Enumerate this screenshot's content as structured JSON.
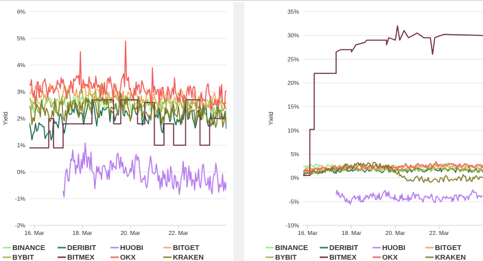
{
  "chart_data": [
    {
      "type": "line",
      "ylabel": "Yield",
      "ylim": [
        -2,
        6
      ],
      "yticks": [
        -2,
        -1,
        0,
        1,
        2,
        3,
        4,
        5,
        6
      ],
      "ytick_labels": [
        "-2%",
        "-1%",
        "0%",
        "1%",
        "2%",
        "3%",
        "4%",
        "5%",
        "6%"
      ],
      "xlim": [
        15.8,
        24.0
      ],
      "xticks": [
        16,
        18,
        20,
        22
      ],
      "xtick_labels": [
        "16. Mar",
        "18. Mar",
        "20. Mar",
        "22. Mar"
      ],
      "grid": true,
      "legend_position": "bottom",
      "series": [
        {
          "name": "BINANCE",
          "color": "#90ed7d",
          "start": 15.8,
          "end": 24.0,
          "base": 2.6,
          "amp": 0.25,
          "noise": 0.18,
          "step": 0.06,
          "pts": [
            [
              15.8,
              2.6
            ],
            [
              18.0,
              2.7
            ],
            [
              19.5,
              2.5
            ],
            [
              20.5,
              2.6
            ],
            [
              22.5,
              2.5
            ],
            [
              24.0,
              2.4
            ]
          ]
        },
        {
          "name": "DERIBIT",
          "color": "#1f6e4f",
          "start": 15.8,
          "end": 24.0,
          "base": 2.0,
          "amp": 0.35,
          "noise": 0.25,
          "step": 0.05,
          "pts": [
            [
              15.8,
              1.7
            ],
            [
              16.5,
              1.6
            ],
            [
              17.5,
              2.1
            ],
            [
              18.5,
              2.3
            ],
            [
              20.0,
              2.2
            ],
            [
              21.5,
              2.0
            ],
            [
              22.5,
              2.2
            ],
            [
              24.0,
              2.0
            ]
          ]
        },
        {
          "name": "HUOBI",
          "color": "#b57bee",
          "start": 17.2,
          "end": 24.0,
          "base": 0.0,
          "amp": 0.4,
          "noise": 0.4,
          "step": 0.04,
          "pts": [
            [
              17.2,
              -0.5
            ],
            [
              17.6,
              0.2
            ],
            [
              18.0,
              0.5
            ],
            [
              18.5,
              0.1
            ],
            [
              19.5,
              0.2
            ],
            [
              20.5,
              0.1
            ],
            [
              21.5,
              -0.3
            ],
            [
              22.5,
              -0.2
            ],
            [
              23.2,
              -0.4
            ],
            [
              24.0,
              -0.3
            ]
          ]
        },
        {
          "name": "BITGET",
          "color": "#f7a35c",
          "start": 15.8,
          "end": 24.0,
          "base": 2.8,
          "amp": 0.3,
          "noise": 0.2,
          "step": 0.05,
          "pts": [
            [
              15.8,
              2.9
            ],
            [
              17.0,
              3.0
            ],
            [
              18.5,
              3.0
            ],
            [
              20.0,
              2.8
            ],
            [
              21.5,
              2.7
            ],
            [
              22.5,
              2.7
            ],
            [
              24.0,
              2.5
            ]
          ]
        },
        {
          "name": "BYBIT",
          "color": "#a4b33f",
          "start": 15.8,
          "end": 24.0,
          "base": 2.5,
          "amp": 0.3,
          "noise": 0.25,
          "step": 0.05,
          "pts": [
            [
              15.8,
              2.5
            ],
            [
              17.0,
              2.6
            ],
            [
              18.5,
              2.8
            ],
            [
              20.0,
              2.6
            ],
            [
              21.5,
              2.4
            ],
            [
              22.5,
              2.5
            ],
            [
              24.0,
              2.3
            ]
          ]
        },
        {
          "name": "BITMEX",
          "color": "#6b2744",
          "start": 15.8,
          "end": 24.0,
          "base": 1.0,
          "amp": 0,
          "noise": 0,
          "step": 0.05,
          "pts": [
            [
              15.8,
              0.9
            ],
            [
              16.6,
              0.9
            ],
            [
              16.6,
              2.0
            ],
            [
              16.8,
              2.0
            ],
            [
              16.8,
              0.9
            ],
            [
              17.2,
              0.9
            ],
            [
              17.2,
              1.8
            ],
            [
              18.4,
              1.8
            ],
            [
              18.4,
              2.7
            ],
            [
              19.3,
              2.7
            ],
            [
              19.3,
              1.8
            ],
            [
              19.6,
              1.8
            ],
            [
              19.6,
              2.7
            ],
            [
              20.3,
              2.7
            ],
            [
              20.3,
              1.8
            ],
            [
              20.6,
              1.8
            ],
            [
              20.6,
              2.6
            ],
            [
              21.0,
              2.6
            ],
            [
              21.0,
              1.0
            ],
            [
              21.4,
              1.0
            ],
            [
              21.4,
              1.8
            ],
            [
              21.8,
              1.8
            ],
            [
              21.8,
              1.0
            ],
            [
              22.3,
              1.0
            ],
            [
              22.3,
              2.7
            ],
            [
              22.9,
              2.7
            ],
            [
              22.9,
              1.0
            ],
            [
              23.3,
              1.0
            ],
            [
              23.3,
              2.0
            ],
            [
              24.0,
              2.0
            ]
          ]
        },
        {
          "name": "OKX",
          "color": "#f45b5b",
          "start": 15.8,
          "end": 24.0,
          "base": 3.0,
          "amp": 0.35,
          "noise": 0.3,
          "step": 0.04,
          "pts": [
            [
              15.8,
              3.0
            ],
            [
              17.0,
              3.3
            ],
            [
              18.2,
              3.4
            ],
            [
              19.0,
              3.1
            ],
            [
              20.0,
              3.2
            ],
            [
              21.0,
              2.9
            ],
            [
              22.5,
              2.9
            ],
            [
              24.0,
              2.7
            ]
          ],
          "spikes": [
            [
              17.9,
              4.5
            ],
            [
              19.8,
              4.9
            ],
            [
              20.9,
              3.9
            ]
          ]
        },
        {
          "name": "KRAKEN",
          "color": "#807c26",
          "start": 15.8,
          "end": 24.0,
          "base": 2.2,
          "amp": 0.3,
          "noise": 0.3,
          "step": 0.05,
          "pts": [
            [
              15.8,
              2.2
            ],
            [
              17.0,
              2.3
            ],
            [
              18.5,
              2.6
            ],
            [
              20.0,
              2.4
            ],
            [
              21.5,
              2.2
            ],
            [
              22.5,
              2.3
            ],
            [
              24.0,
              1.9
            ]
          ]
        }
      ]
    },
    {
      "type": "line",
      "ylabel": "Yield",
      "ylim": [
        -10,
        35
      ],
      "yticks": [
        -10,
        -5,
        0,
        5,
        10,
        15,
        20,
        25,
        30,
        35
      ],
      "ytick_labels": [
        "-10%",
        "-5%",
        "0%",
        "5%",
        "10%",
        "15%",
        "20%",
        "25%",
        "30%",
        "35%"
      ],
      "xlim": [
        15.8,
        24.0
      ],
      "xticks": [
        16,
        18,
        20,
        22
      ],
      "xtick_labels": [
        "16. Mar",
        "18. Mar",
        "20. Mar",
        "22. Mar"
      ],
      "grid": true,
      "legend_position": "bottom",
      "series": [
        {
          "name": "BINANCE",
          "color": "#90ed7d",
          "start": 15.8,
          "end": 24.0,
          "base": 2.5,
          "amp": 0.3,
          "noise": 0.35,
          "step": 0.05,
          "pts": [
            [
              15.8,
              2.5
            ],
            [
              18.0,
              2.6
            ],
            [
              20.0,
              2.4
            ],
            [
              22.0,
              2.7
            ],
            [
              24.0,
              2.3
            ]
          ]
        },
        {
          "name": "DERIBIT",
          "color": "#1f6e4f",
          "start": 15.8,
          "end": 24.0,
          "base": 1.5,
          "amp": 0.3,
          "noise": 0.4,
          "step": 0.05,
          "pts": [
            [
              15.8,
              1.0
            ],
            [
              18.0,
              1.8
            ],
            [
              20.0,
              1.6
            ],
            [
              22.0,
              1.8
            ],
            [
              24.0,
              1.5
            ]
          ]
        },
        {
          "name": "HUOBI",
          "color": "#b57bee",
          "start": 17.3,
          "end": 24.0,
          "base": -4.0,
          "amp": 0.6,
          "noise": 0.7,
          "step": 0.04,
          "pts": [
            [
              17.3,
              -3.0
            ],
            [
              17.7,
              -4.5
            ],
            [
              18.5,
              -4.5
            ],
            [
              19.5,
              -3.5
            ],
            [
              20.3,
              -4.5
            ],
            [
              21.0,
              -4.0
            ],
            [
              22.0,
              -4.5
            ],
            [
              23.0,
              -4.0
            ],
            [
              24.0,
              -3.5
            ]
          ]
        },
        {
          "name": "BITGET",
          "color": "#f7a35c",
          "start": 15.8,
          "end": 24.0,
          "base": 2.0,
          "amp": 0.3,
          "noise": 0.35,
          "step": 0.05,
          "pts": [
            [
              15.8,
              1.8
            ],
            [
              18.0,
              2.2
            ],
            [
              20.0,
              2.0
            ],
            [
              22.0,
              2.5
            ],
            [
              24.0,
              2.0
            ]
          ]
        },
        {
          "name": "BYBIT",
          "color": "#a4b33f",
          "start": 15.8,
          "end": 24.0,
          "base": 1.5,
          "amp": 0.3,
          "noise": 0.35,
          "step": 0.05,
          "pts": [
            [
              15.8,
              1.2
            ],
            [
              18.0,
              2.0
            ],
            [
              20.0,
              1.6
            ],
            [
              22.0,
              2.0
            ],
            [
              24.0,
              1.5
            ]
          ]
        },
        {
          "name": "BITMEX",
          "color": "#6b2744",
          "start": 15.8,
          "end": 24.0,
          "base": 0,
          "amp": 0,
          "noise": 0,
          "step": 0.05,
          "pts": [
            [
              15.8,
              0.5
            ],
            [
              16.1,
              0.5
            ],
            [
              16.1,
              10.2
            ],
            [
              16.3,
              10.2
            ],
            [
              16.3,
              22.0
            ],
            [
              17.3,
              22.0
            ],
            [
              17.3,
              26.5
            ],
            [
              17.5,
              27.0
            ],
            [
              18.0,
              27.0
            ],
            [
              18.0,
              26.5
            ],
            [
              18.2,
              28.0
            ],
            [
              18.6,
              28.5
            ],
            [
              18.7,
              29.0
            ],
            [
              19.6,
              29.0
            ],
            [
              19.6,
              28.0
            ],
            [
              19.7,
              29.5
            ],
            [
              20.0,
              29.0
            ],
            [
              20.1,
              32.0
            ],
            [
              20.2,
              29.0
            ],
            [
              20.4,
              31.0
            ],
            [
              20.6,
              29.5
            ],
            [
              21.0,
              30.5
            ],
            [
              21.3,
              29.5
            ],
            [
              21.6,
              29.5
            ],
            [
              21.7,
              26.0
            ],
            [
              21.8,
              29.5
            ],
            [
              22.2,
              30.2
            ],
            [
              24.0,
              30.0
            ]
          ]
        },
        {
          "name": "OKX",
          "color": "#f45b5b",
          "start": 15.8,
          "end": 24.0,
          "base": 2.2,
          "amp": 0.3,
          "noise": 0.4,
          "step": 0.05,
          "pts": [
            [
              15.8,
              1.5
            ],
            [
              18.0,
              2.4
            ],
            [
              20.0,
              2.2
            ],
            [
              22.0,
              2.8
            ],
            [
              24.0,
              2.5
            ]
          ]
        },
        {
          "name": "KRAKEN",
          "color": "#807c26",
          "start": 15.8,
          "end": 24.0,
          "base": 1.0,
          "amp": 0.4,
          "noise": 0.5,
          "step": 0.05,
          "pts": [
            [
              15.8,
              1.0
            ],
            [
              17.0,
              1.5
            ],
            [
              18.5,
              3.0
            ],
            [
              19.5,
              2.5
            ],
            [
              20.5,
              0.0
            ],
            [
              21.5,
              -0.5
            ],
            [
              22.5,
              -0.2
            ],
            [
              24.0,
              0.0
            ]
          ]
        }
      ]
    }
  ]
}
